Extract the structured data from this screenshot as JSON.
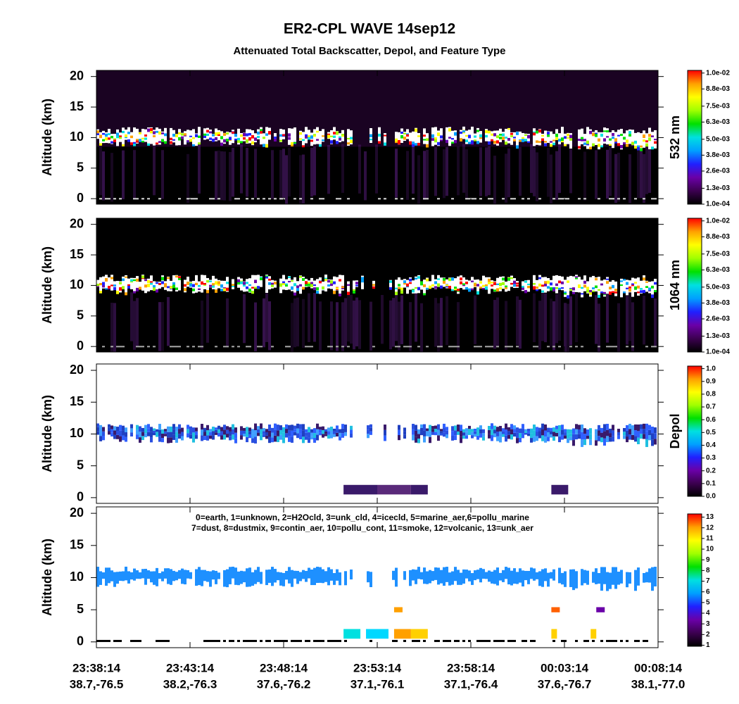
{
  "chart_data": {
    "type": "lidar-curtain",
    "title": "ER2-CPL WAVE 14sep12",
    "subtitle": "Attenuated Total Backscatter, Depol, and Feature Type",
    "categories": [
      "23:38:14",
      "23:43:14",
      "23:48:14",
      "23:53:14",
      "23:58:14",
      "00:03:14",
      "00:08:14"
    ],
    "locations": [
      "38.7,-76.5",
      "38.2,-76.3",
      "37.6,-76.2",
      "37.1,-76.1",
      "37.1,-76.4",
      "37.6,-76.7",
      "38.1,-77.0"
    ],
    "colormap": [
      "#000000",
      "#3c0050",
      "#6a00a8",
      "#2020ff",
      "#00a0ff",
      "#00e0e0",
      "#00e000",
      "#a0ff00",
      "#ffff00",
      "#ffa000",
      "#ff0000"
    ],
    "panels": [
      {
        "ylabel": "Altitude (km)",
        "ylim": [
          -0.9,
          21
        ],
        "yticks": [
          0,
          5,
          10,
          15,
          20
        ],
        "colorbar": {
          "label": "532 nm",
          "lim": [
            0.0001,
            0.0102
          ],
          "ticks": [
            {
              "value": 0.01,
              "label": "1.0e-02"
            },
            {
              "value": 0.0088,
              "label": "8.8e-03"
            },
            {
              "value": 0.0075,
              "label": "7.5e-03"
            },
            {
              "value": 0.0063,
              "label": "6.3e-03"
            },
            {
              "value": 0.005,
              "label": "5.0e-03"
            },
            {
              "value": 0.0038,
              "label": "3.8e-03"
            },
            {
              "value": 0.0026,
              "label": "2.6e-03"
            },
            {
              "value": 0.0013,
              "label": "1.3e-03"
            },
            {
              "value": 0.0001,
              "label": "1.0e-04"
            }
          ]
        }
      },
      {
        "ylabel": "Altitude (km)",
        "ylim": [
          -0.9,
          21
        ],
        "yticks": [
          0,
          5,
          10,
          15,
          20
        ],
        "colorbar": {
          "label": "1064 nm",
          "lim": [
            0.0001,
            0.0102
          ],
          "ticks": [
            {
              "value": 0.01,
              "label": "1.0e-02"
            },
            {
              "value": 0.0088,
              "label": "8.8e-03"
            },
            {
              "value": 0.0075,
              "label": "7.5e-03"
            },
            {
              "value": 0.0063,
              "label": "6.3e-03"
            },
            {
              "value": 0.005,
              "label": "5.0e-03"
            },
            {
              "value": 0.0038,
              "label": "3.8e-03"
            },
            {
              "value": 0.0026,
              "label": "2.6e-03"
            },
            {
              "value": 0.0013,
              "label": "1.3e-03"
            },
            {
              "value": 0.0001,
              "label": "1.0e-04"
            }
          ]
        }
      },
      {
        "ylabel": "Altitude (km)",
        "ylim": [
          -0.9,
          21
        ],
        "yticks": [
          0,
          5,
          10,
          15,
          20
        ],
        "colorbar": {
          "label": "Depol",
          "lim": [
            0,
            1.02
          ],
          "ticks": [
            {
              "value": 1,
              "label": "1.0"
            },
            0.9,
            0.8,
            0.7,
            0.6,
            0.5,
            0.4,
            0.3,
            0.2,
            0.1,
            {
              "value": 0,
              "label": "0.0"
            }
          ]
        }
      },
      {
        "ylabel": "Altitude (km)",
        "ylim": [
          -0.9,
          21
        ],
        "yticks": [
          0,
          5,
          10,
          15,
          20
        ],
        "annotations": [
          "0=earth, 1=unknown, 2=H2Ocld, 3=unk_cld, 4=icecld, 5=marine_aer,6=pollu_marine",
          "7=dust, 8=dustmix, 9=contin_aer, 10=pollu_cont, 11=smoke, 12=volcanic, 13=unk_aer"
        ],
        "colorbar": {
          "label": null,
          "lim": [
            0.9,
            13.3
          ],
          "ticks": [
            13,
            12,
            11,
            10,
            9,
            8,
            7,
            6,
            5,
            4,
            3,
            2,
            1
          ]
        }
      }
    ]
  }
}
